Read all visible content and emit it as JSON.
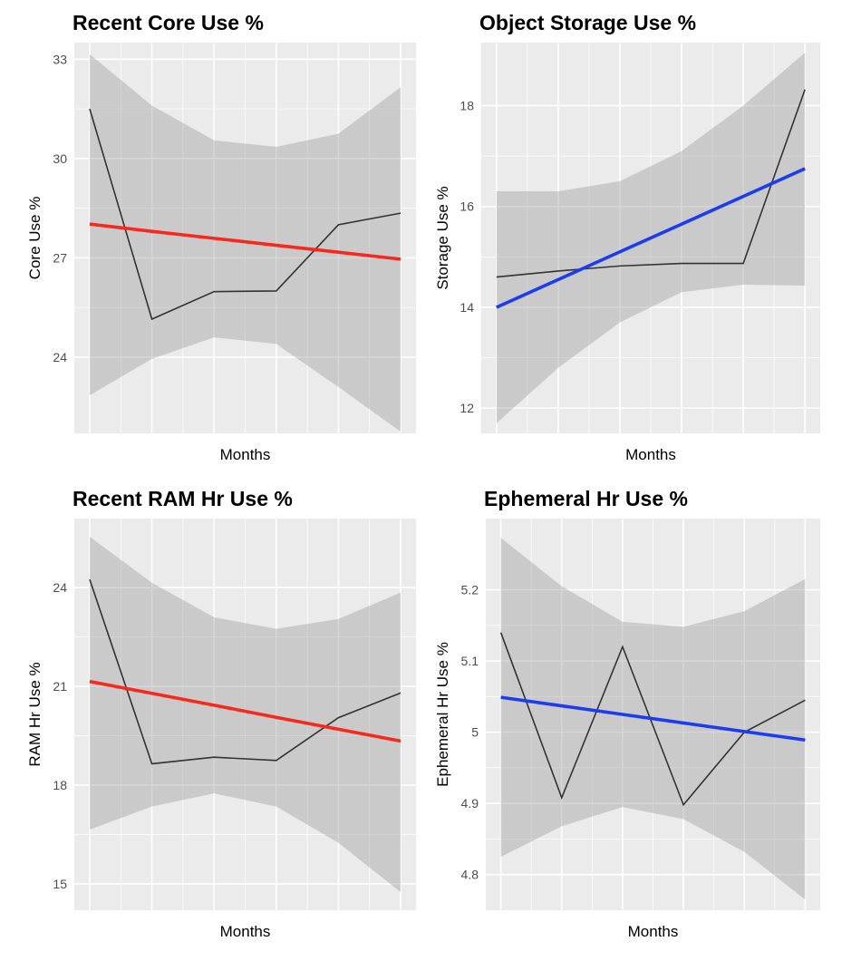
{
  "charts": [
    {
      "id": "core",
      "chart_data": {
        "type": "line",
        "title": "Recent Core Use %",
        "xlabel": "Months",
        "ylabel": "Core Use %",
        "x": [
          1,
          2,
          3,
          4,
          5,
          6
        ],
        "ylim": [
          21.7,
          33.5
        ],
        "yticks": [
          24,
          27,
          30,
          33
        ],
        "series": [
          {
            "kind": "observed",
            "values": [
              31.5,
              25.15,
              25.98,
              26.0,
              28.0,
              28.35
            ]
          },
          {
            "kind": "trend",
            "values": [
              28.02,
              27.8,
              27.59,
              27.38,
              27.17,
              26.96
            ]
          }
        ],
        "band_upper": [
          33.15,
          31.6,
          30.55,
          30.35,
          30.75,
          32.15
        ],
        "band_lower": [
          22.85,
          23.95,
          24.6,
          24.4,
          23.1,
          21.75
        ],
        "trend_color": "#f8281c",
        "grid": true,
        "legend": "none"
      }
    },
    {
      "id": "storage",
      "chart_data": {
        "type": "line",
        "title": "Object Storage Use %",
        "xlabel": "Months",
        "ylabel": "Storage Use %",
        "x": [
          1,
          2,
          3,
          4,
          5,
          6
        ],
        "ylim": [
          11.5,
          19.25
        ],
        "yticks": [
          12,
          14,
          16,
          18
        ],
        "series": [
          {
            "kind": "observed",
            "values": [
              14.6,
              14.72,
              14.82,
              14.87,
              14.87,
              18.32
            ]
          },
          {
            "kind": "trend",
            "values": [
              14.0,
              14.55,
              15.1,
              15.65,
              16.2,
              16.75
            ]
          }
        ],
        "band_upper": [
          16.3,
          16.3,
          16.5,
          17.1,
          18.0,
          19.05
        ],
        "band_lower": [
          11.7,
          12.8,
          13.7,
          14.3,
          14.45,
          14.43
        ],
        "trend_color": "#1b3cf3",
        "grid": true,
        "legend": "none"
      }
    },
    {
      "id": "ram",
      "chart_data": {
        "type": "line",
        "title": "Recent RAM Hr Use %",
        "xlabel": "Months",
        "ylabel": "RAM Hr Use %",
        "x": [
          1,
          2,
          3,
          4,
          5,
          6
        ],
        "ylim": [
          14.2,
          26.1
        ],
        "yticks": [
          15,
          18,
          21,
          24
        ],
        "series": [
          {
            "kind": "observed",
            "values": [
              24.25,
              18.65,
              18.85,
              18.75,
              20.05,
              20.8
            ]
          },
          {
            "kind": "trend",
            "values": [
              21.15,
              20.79,
              20.43,
              20.06,
              19.7,
              19.34
            ]
          }
        ],
        "band_upper": [
          25.55,
          24.15,
          23.1,
          22.75,
          23.05,
          23.85
        ],
        "band_lower": [
          16.65,
          17.35,
          17.75,
          17.35,
          16.25,
          14.75
        ],
        "trend_color": "#f8281c",
        "grid": true,
        "legend": "none"
      }
    },
    {
      "id": "ephemeral",
      "chart_data": {
        "type": "line",
        "title": "Ephemeral Hr Use %",
        "xlabel": "Months",
        "ylabel": "Ephemeral Hr Use %",
        "x": [
          1,
          2,
          3,
          4,
          5,
          6
        ],
        "ylim": [
          4.75,
          5.3
        ],
        "yticks": [
          4.8,
          4.9,
          5.0,
          5.1,
          5.2
        ],
        "series": [
          {
            "kind": "observed",
            "values": [
              5.14,
              4.908,
              5.12,
              4.898,
              5.0,
              5.045
            ]
          },
          {
            "kind": "trend",
            "values": [
              5.049,
              5.037,
              5.025,
              5.013,
              5.001,
              4.989
            ]
          }
        ],
        "band_upper": [
          5.273,
          5.205,
          5.155,
          5.148,
          5.17,
          5.215
        ],
        "band_lower": [
          4.825,
          4.868,
          4.895,
          4.878,
          4.832,
          4.765
        ],
        "trend_color": "#1b3cf3",
        "grid": true,
        "legend": "none"
      }
    }
  ]
}
